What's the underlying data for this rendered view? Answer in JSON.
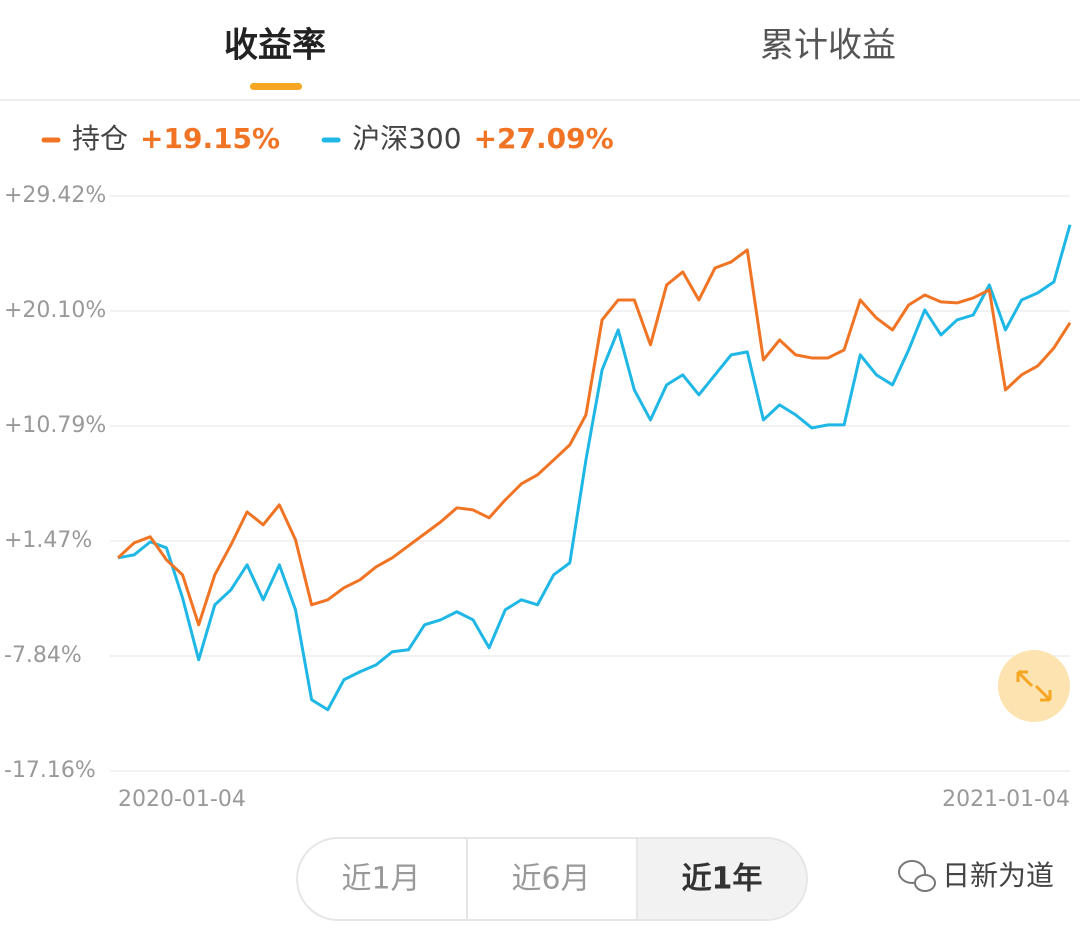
{
  "tabs": [
    "收益率",
    "累计收益"
  ],
  "ranges": [
    "近1月",
    "近6月",
    "近1年"
  ],
  "watermark": "日新为道",
  "chart_data": {
    "type": "line",
    "categories": [
      "2020-01-04",
      null,
      null,
      null,
      null,
      null,
      null,
      null,
      null,
      null,
      null,
      null,
      null,
      null,
      null,
      null,
      null,
      null,
      null,
      null,
      null,
      null,
      null,
      null,
      null,
      null,
      null,
      null,
      null,
      null,
      null,
      null,
      null,
      null,
      null,
      null,
      null,
      null,
      null,
      null,
      null,
      null,
      null,
      null,
      null,
      null,
      null,
      null,
      null,
      null,
      null,
      null,
      null,
      null,
      null,
      null,
      null,
      null,
      null,
      "2021-01-04"
    ],
    "series": [
      {
        "name": "持仓",
        "summary": "+19.15%",
        "color": "#f07424",
        "values": [
          0.11,
          1.32,
          1.81,
          -0.05,
          -1.27,
          -5.32,
          -1.27,
          1.16,
          3.83,
          2.78,
          4.4,
          1.57,
          -3.7,
          -3.29,
          -2.32,
          -1.67,
          -0.62,
          0.11,
          1.08,
          2.05,
          3.02,
          4.16,
          3.99,
          3.35,
          4.8,
          6.1,
          6.83,
          8.04,
          9.26,
          11.69,
          19.38,
          21.0,
          21.0,
          17.36,
          22.21,
          23.27,
          21.0,
          23.59,
          24.08,
          25.05,
          16.14,
          17.76,
          16.55,
          16.3,
          16.3,
          16.95,
          21.0,
          19.54,
          18.57,
          20.59,
          21.4,
          20.84,
          20.76,
          21.16,
          21.81,
          13.71,
          14.93,
          15.65,
          17.11,
          19.15
        ]
      },
      {
        "name": "沪深300",
        "summary": "+27.09%",
        "color": "#1fb7e6",
        "values": [
          0.11,
          0.35,
          1.4,
          0.92,
          -3.13,
          -8.15,
          -3.7,
          -2.48,
          -0.46,
          -3.29,
          -0.46,
          -4.1,
          -11.39,
          -12.2,
          -9.77,
          -9.12,
          -8.56,
          -7.5,
          -7.34,
          -5.32,
          -4.91,
          -4.26,
          -4.91,
          -7.18,
          -4.1,
          -3.29,
          -3.7,
          -1.27,
          -0.3,
          8.04,
          15.33,
          18.57,
          13.71,
          11.28,
          14.12,
          14.93,
          13.31,
          14.93,
          16.55,
          16.79,
          11.28,
          12.5,
          11.69,
          10.63,
          10.88,
          10.88,
          16.55,
          14.93,
          14.12,
          16.95,
          20.19,
          18.16,
          19.38,
          19.78,
          22.21,
          18.57,
          21.0,
          21.57,
          22.46,
          27.09
        ]
      }
    ],
    "ylim": [
      -17.16,
      29.42
    ],
    "yticks": [
      {
        "value": -17.16,
        "label": "-17.16%"
      },
      {
        "value": -7.84,
        "label": "-7.84%"
      },
      {
        "value": 1.47,
        "label": "+1.47%"
      },
      {
        "value": 10.79,
        "label": "+10.79%"
      },
      {
        "value": 20.1,
        "label": "+20.10%"
      },
      {
        "value": 29.42,
        "label": "+29.42%"
      }
    ],
    "grid": true
  }
}
